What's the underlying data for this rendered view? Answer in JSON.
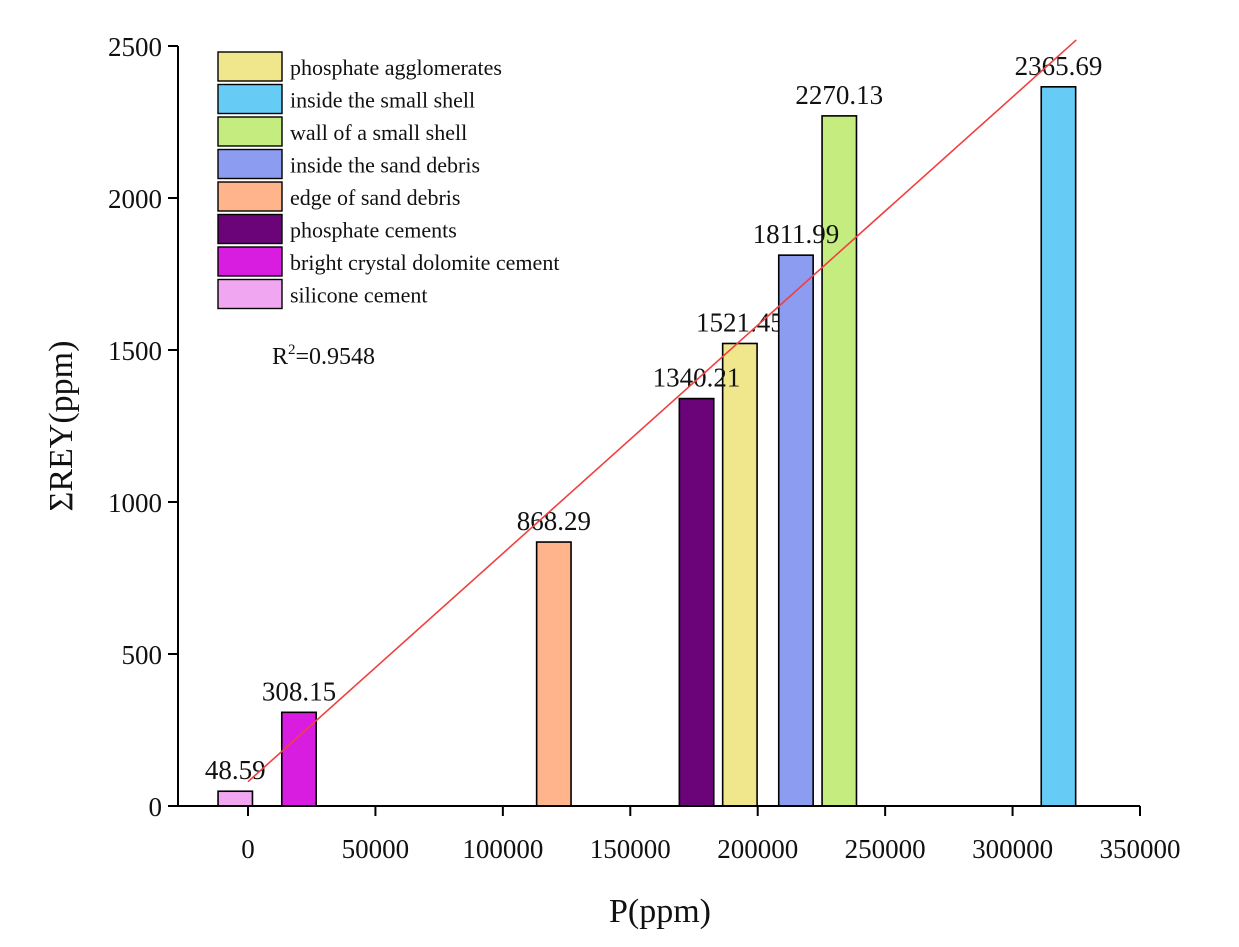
{
  "chart_data": {
    "type": "bar",
    "xlabel": "P(ppm)",
    "ylabel": "ΣREY(ppm)",
    "xlim": [
      -15000,
      350000
    ],
    "ylim": [
      0,
      2500
    ],
    "xticks": [
      0,
      50000,
      100000,
      150000,
      200000,
      250000,
      300000,
      350000
    ],
    "yticks": [
      0,
      500,
      1000,
      1500,
      2000,
      2500
    ],
    "xtick_labels": [
      "0",
      "50000",
      "100000",
      "150000",
      "200000",
      "250000",
      "300000",
      "350000"
    ],
    "ytick_labels": [
      "0",
      "500",
      "1000",
      "1500",
      "2000",
      "2500"
    ],
    "bar_width": 13500,
    "series": [
      {
        "name": "phosphate agglomerates",
        "x": 193000,
        "value": 1521.45,
        "label": "1521.45",
        "color": "#f0e68c"
      },
      {
        "name": "inside the small shell",
        "x": 318000,
        "value": 2365.69,
        "label": "2365.69",
        "color": "#66ccf5"
      },
      {
        "name": "wall of a small shell",
        "x": 232000,
        "value": 2270.13,
        "label": "2270.13",
        "color": "#c4ec7e"
      },
      {
        "name": "inside the sand debris",
        "x": 215000,
        "value": 1811.99,
        "label": "1811.99",
        "color": "#8c9cf0"
      },
      {
        "name": "edge of sand debris",
        "x": 120000,
        "value": 868.29,
        "label": "868.29",
        "color": "#ffb48c"
      },
      {
        "name": "phosphate cements",
        "x": 176000,
        "value": 1340.21,
        "label": "1340.21",
        "color": "#6a0478"
      },
      {
        "name": "bright crystal dolomite cement",
        "x": 20000,
        "value": 308.15,
        "label": "308.15",
        "color": "#d81ce0"
      },
      {
        "name": "silicone cement",
        "x": -5000,
        "value": 48.59,
        "label": "48.59",
        "color": "#f0a6f0"
      }
    ],
    "trendline": {
      "x": [
        0,
        325000
      ],
      "y": [
        80,
        2520
      ],
      "color": "#f04040"
    },
    "annotation": {
      "r2_prefix": "R",
      "r2_sup": "2",
      "r2_value": "=0.9548"
    },
    "legend_position": "top-left"
  }
}
